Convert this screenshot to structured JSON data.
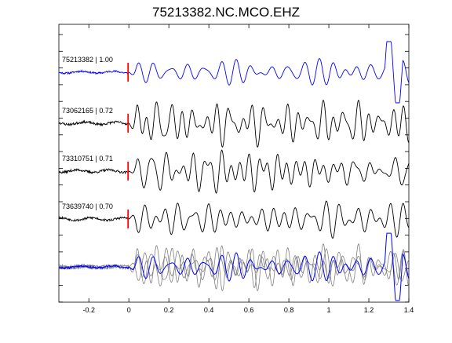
{
  "chart_data": {
    "type": "line",
    "title": "75213382.NC.MCO.EHZ",
    "xlabel": "",
    "ylabel": "",
    "xlim": [
      -0.35,
      1.4
    ],
    "x_ticks": [
      "-0.2",
      "0",
      "0.2",
      "0.4",
      "0.6",
      "0.8",
      "1",
      "1.2",
      "1.4"
    ],
    "x_tick_values": [
      -0.2,
      0,
      0.2,
      0.4,
      0.6,
      0.8,
      1.0,
      1.2,
      1.4
    ],
    "y_ticks_shown": false,
    "grid": false,
    "pick_time": 0,
    "series": [
      {
        "name": "75213382 | 1.00",
        "label": "75213382 | 1.00",
        "color": "#0000ff",
        "seed": 11,
        "amplitude": 0.45,
        "frequency": 18,
        "noise_before_pick": 0.04,
        "has_end_spike": true
      },
      {
        "name": "73062165 | 0.72",
        "label": "73062165 | 0.72",
        "color": "#000000",
        "seed": 23,
        "amplitude": 1.0,
        "frequency": 16,
        "noise_before_pick": 0.05,
        "has_end_spike": false
      },
      {
        "name": "73310751 | 0.71",
        "label": "73310751 | 0.71",
        "color": "#000000",
        "seed": 37,
        "amplitude": 0.95,
        "frequency": 17,
        "noise_before_pick": 0.05,
        "has_end_spike": false
      },
      {
        "name": "73639740 | 0.70",
        "label": "73639740 | 0.70",
        "color": "#000000",
        "seed": 53,
        "amplitude": 0.75,
        "frequency": 16,
        "noise_before_pick": 0.05,
        "has_end_spike": false
      }
    ],
    "overlay": {
      "primary_color": "#0000ff",
      "secondary_color": "#808080"
    },
    "pick_marker_color": "#ff0000"
  }
}
